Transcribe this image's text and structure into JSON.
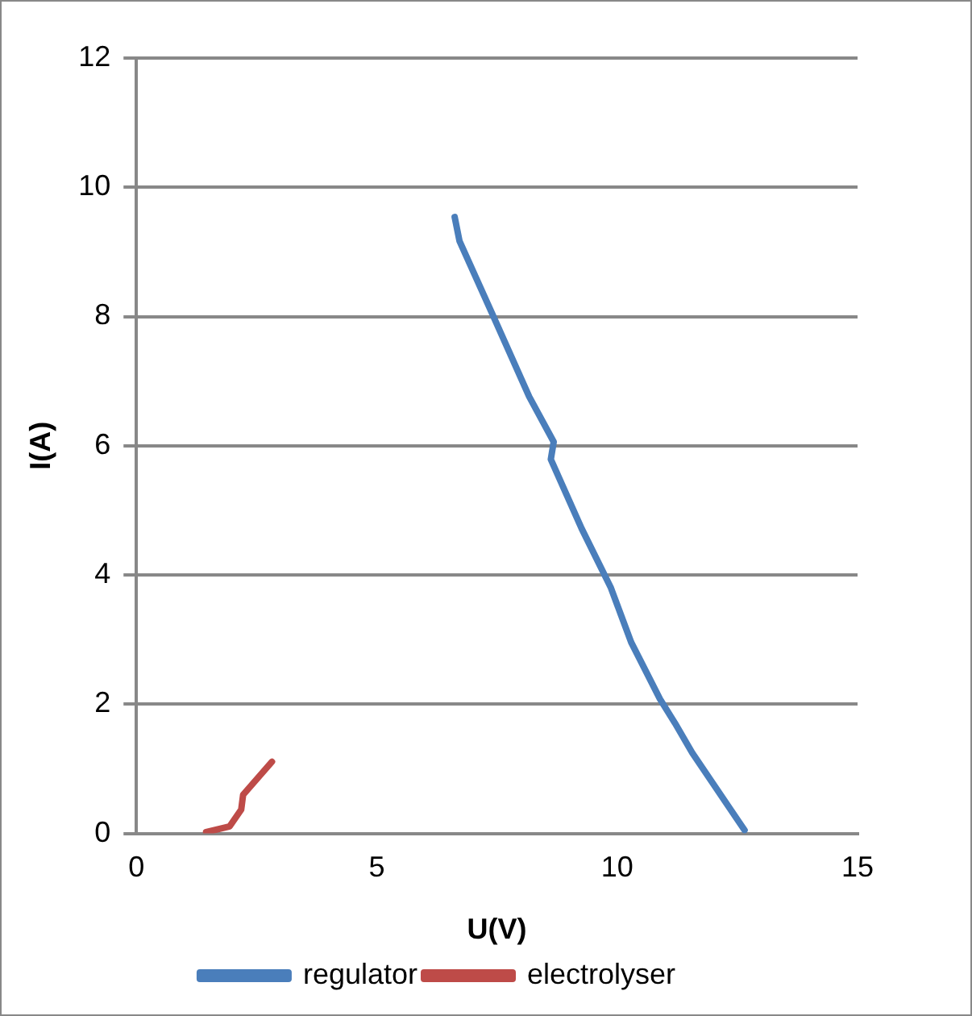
{
  "chart_data": {
    "type": "line",
    "xlabel": "U(V)",
    "ylabel": "I(A)",
    "xlim": [
      0,
      15
    ],
    "xticks": [
      0,
      5,
      10,
      15
    ],
    "ylim": [
      0,
      12
    ],
    "yticks": [
      0,
      2,
      4,
      6,
      8,
      10,
      12
    ],
    "grid": "y",
    "legend": "bottom",
    "marker": "none",
    "line_style": "solid",
    "series": [
      {
        "name": "regulator",
        "color": "#4a7ebb",
        "x": [
          6.62,
          6.72,
          7.39,
          8.17,
          8.68,
          8.62,
          9.26,
          9.87,
          10.29,
          10.89,
          11.2,
          11.56,
          12.65
        ],
        "values": [
          9.54,
          9.17,
          8.06,
          6.76,
          6.06,
          5.79,
          4.72,
          3.8,
          2.96,
          2.08,
          1.71,
          1.25,
          0.05
        ]
      },
      {
        "name": "electrolyser",
        "color": "#be4b48",
        "x": [
          1.45,
          1.94,
          2.18,
          2.22,
          2.82
        ],
        "values": [
          0.02,
          0.11,
          0.37,
          0.6,
          1.11
        ]
      }
    ]
  }
}
